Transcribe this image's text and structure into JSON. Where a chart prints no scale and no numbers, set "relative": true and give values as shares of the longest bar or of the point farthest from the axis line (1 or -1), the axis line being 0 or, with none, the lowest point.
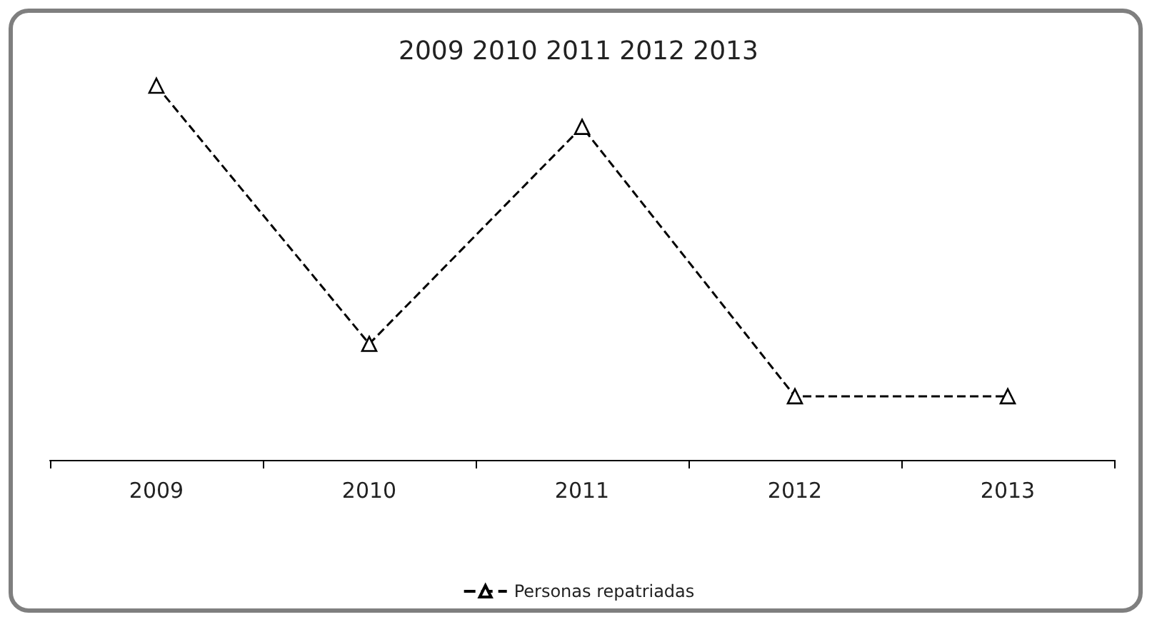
{
  "chart_data": {
    "type": "line",
    "title": "2009 2010 2011 2012 2013",
    "relative": true,
    "categories": [
      "2009",
      "2010",
      "2011",
      "2012",
      "2013"
    ],
    "series": [
      {
        "name": "Personas repatriadas",
        "color": "#000000",
        "values": [
          1,
          0.31,
          0.89,
          0.17,
          0.17
        ]
      }
    ],
    "marker": "triangle",
    "line_style": "dashed",
    "legend": "bottom",
    "grid": false
  }
}
